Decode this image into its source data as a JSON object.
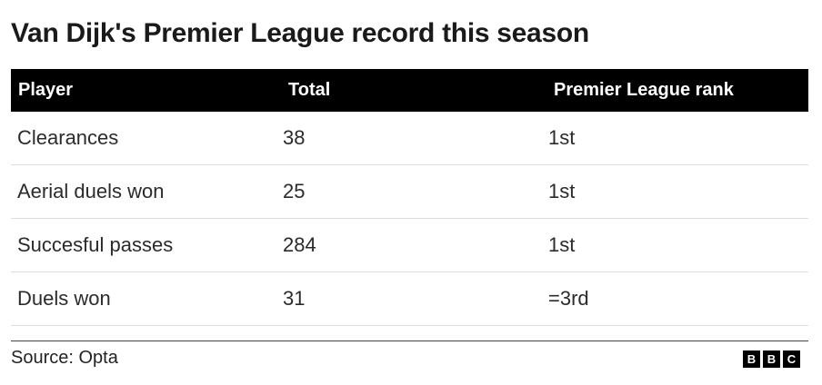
{
  "title": "Van Dijk's Premier League record this season",
  "table": {
    "headers": [
      "Player",
      "Total",
      "Premier League rank"
    ],
    "rows": [
      [
        "Clearances",
        "38",
        "1st"
      ],
      [
        "Aerial duels won",
        "25",
        "1st"
      ],
      [
        "Succesful passes",
        "284",
        "1st"
      ],
      [
        "Duels won",
        "31",
        "=3rd"
      ]
    ]
  },
  "footer": {
    "source": "Source: Opta",
    "logo_letters": [
      "B",
      "B",
      "C"
    ]
  },
  "colors": {
    "header_bg": "#000000",
    "header_text": "#ffffff",
    "row_divider": "#dddddd"
  }
}
